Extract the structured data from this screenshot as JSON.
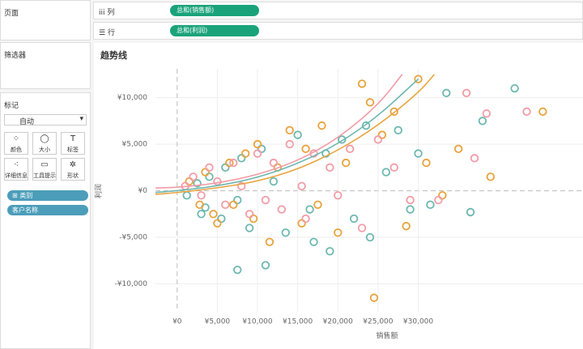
{
  "sidebar": {
    "pages": "页面",
    "filters": "筛选器",
    "marks": "标记",
    "mark_type": "自动",
    "buttons": [
      "颜色",
      "大小",
      "标签",
      "详细信息",
      "工具提示",
      "形状"
    ],
    "pills": [
      "类别",
      "客户名称"
    ]
  },
  "shelves": {
    "columns": {
      "label": "列",
      "pill": "总和(销售额)"
    },
    "rows": {
      "label": "行",
      "pill": "总和(利润)"
    }
  },
  "chart_data": {
    "type": "scatter",
    "title": "趋势线",
    "x_label": "销售额",
    "y_label": "利润",
    "xlim": [
      -2700,
      50500
    ],
    "ylim": [
      -13000,
      13100
    ],
    "xticks": [
      {
        "value": 0,
        "label": "¥0"
      },
      {
        "value": 5000,
        "label": "¥5,000"
      },
      {
        "value": 10000,
        "label": "¥10,000"
      },
      {
        "value": 15000,
        "label": "¥15,000"
      },
      {
        "value": 20000,
        "label": "¥20,000"
      },
      {
        "value": 25000,
        "label": "¥25,000"
      },
      {
        "value": 30000,
        "label": "¥30,000"
      }
    ],
    "yticks": [
      {
        "value": -10000,
        "label": "-¥10,000"
      },
      {
        "value": -5000,
        "label": "-¥5,000"
      },
      {
        "value": 0,
        "label": "¥0"
      },
      {
        "value": 5000,
        "label": "¥5,000"
      },
      {
        "value": 10000,
        "label": "¥10,000"
      }
    ],
    "grid": true,
    "series": [
      {
        "color": "#6db8b0",
        "x": [
          1200,
          2500,
          3000,
          4000,
          5500,
          6000,
          7500,
          8000,
          9000,
          10500,
          11000,
          12000,
          13500,
          15000,
          16500,
          17000,
          18500,
          19000,
          20500,
          22000,
          23500,
          24000,
          26000,
          27500,
          29000,
          30000,
          31500,
          33500,
          36500,
          38000,
          42000,
          7500,
          3500
        ],
        "values": [
          -500,
          800,
          -2500,
          1500,
          -3000,
          2500,
          -1000,
          3500,
          -4000,
          4500,
          -8000,
          1000,
          -4500,
          6000,
          -2000,
          -5500,
          4000,
          -6500,
          5500,
          -3000,
          7000,
          -5000,
          2000,
          6500,
          -2000,
          4000,
          -1500,
          10500,
          -2300,
          7500,
          11000,
          -8500,
          -1800
        ]
      },
      {
        "color": "#e8a33d",
        "x": [
          1500,
          2800,
          3500,
          4500,
          5000,
          6500,
          7000,
          8500,
          9500,
          10000,
          11500,
          12500,
          14000,
          15500,
          16000,
          17500,
          18000,
          20000,
          21000,
          23000,
          24500,
          25500,
          27000,
          28500,
          30000,
          31000,
          33000,
          35000,
          39000,
          45500,
          24000
        ],
        "values": [
          1000,
          -1500,
          2000,
          -2500,
          -3500,
          3000,
          -1500,
          4000,
          -3000,
          5000,
          -5500,
          2500,
          6500,
          -3500,
          4500,
          -1500,
          7000,
          -4500,
          3000,
          11500,
          -11500,
          6000,
          8500,
          -3800,
          12000,
          3000,
          -500,
          4500,
          1500,
          8500,
          9500
        ]
      },
      {
        "color": "#f29ca6",
        "x": [
          1000,
          2000,
          3000,
          4000,
          5000,
          6000,
          7000,
          8000,
          9000,
          10000,
          11000,
          12000,
          13000,
          14000,
          15500,
          16000,
          17000,
          19000,
          20000,
          21500,
          23000,
          25000,
          27000,
          29000,
          32500,
          36000,
          37000,
          38500,
          43500
        ],
        "values": [
          500,
          1500,
          -500,
          2500,
          1000,
          -1500,
          3000,
          500,
          -2500,
          4000,
          -1000,
          3000,
          -2000,
          5000,
          500,
          -3000,
          4000,
          2500,
          -500,
          4500,
          -4000,
          5500,
          2500,
          -1000,
          -1000,
          10500,
          3500,
          8300,
          8500
        ]
      }
    ],
    "trendlines": [
      {
        "color": "#6db8b0",
        "x": [
          -3000,
          0,
          5000,
          10000,
          15000,
          20000,
          25000,
          30000
        ],
        "values": [
          -200,
          0,
          500,
          1400,
          2900,
          5000,
          8000,
          12000
        ]
      },
      {
        "color": "#e8a33d",
        "x": [
          -3000,
          0,
          5000,
          10000,
          15000,
          20000,
          25000,
          30000,
          32000
        ],
        "values": [
          -400,
          -200,
          300,
          1000,
          2300,
          4300,
          7000,
          10500,
          12500
        ]
      },
      {
        "color": "#f29ca6",
        "x": [
          -3000,
          0,
          5000,
          10000,
          15000,
          20000,
          25000,
          28000
        ],
        "values": [
          300,
          350,
          800,
          1700,
          3200,
          5600,
          9200,
          12500
        ]
      }
    ]
  }
}
